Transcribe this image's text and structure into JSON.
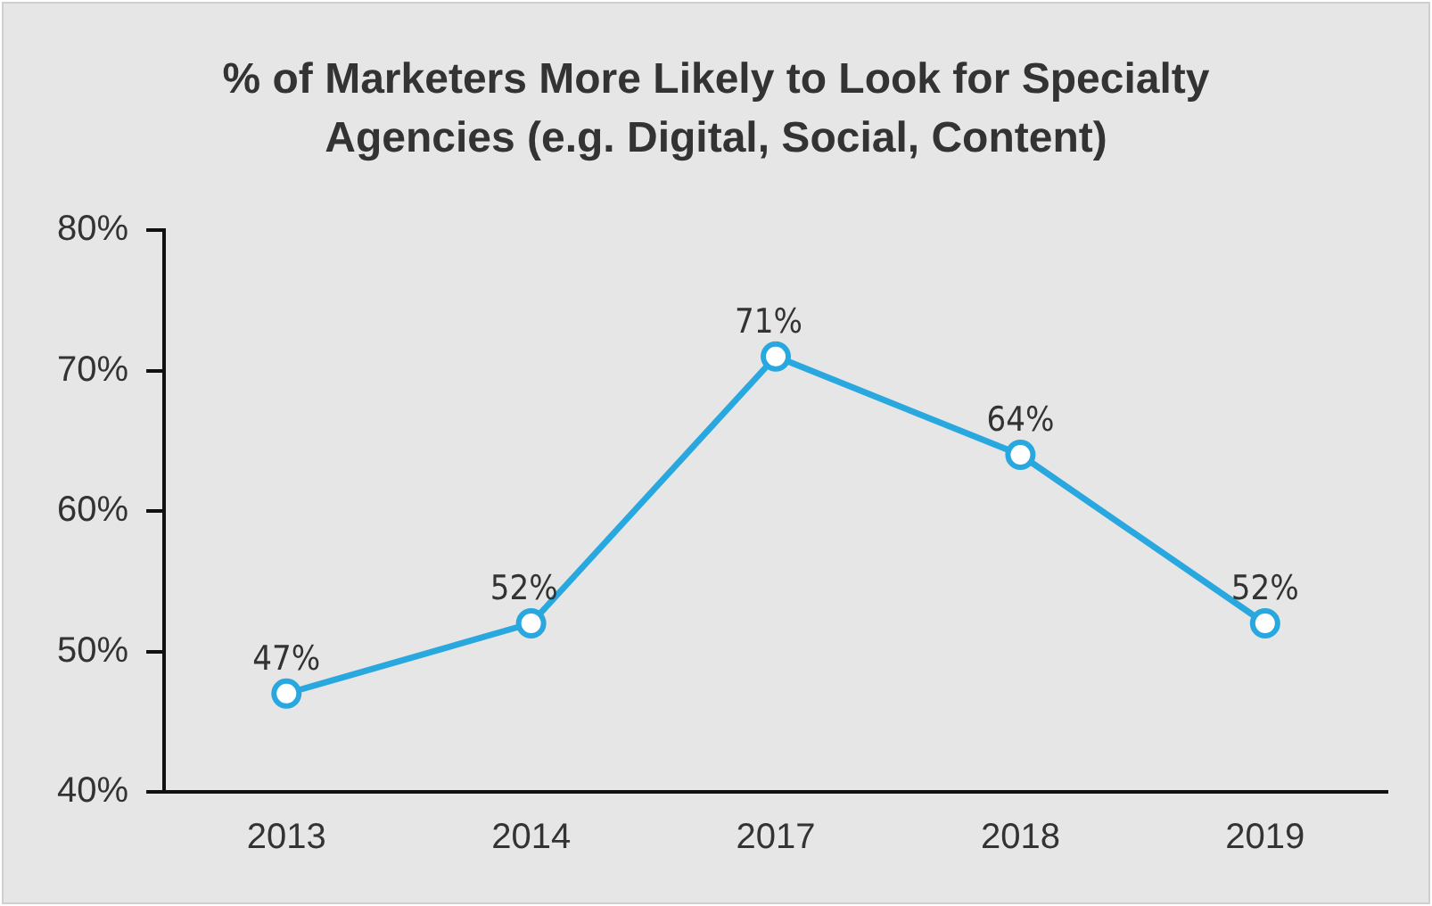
{
  "chart_data": {
    "type": "line",
    "title": "% of Marketers More Likely to Look for Specialty Agencies (e.g. Digital, Social, Content)",
    "categories": [
      "2013",
      "2014",
      "2017",
      "2018",
      "2019"
    ],
    "series": [
      {
        "color": "#29a8e0",
        "values": [
          47,
          52,
          71,
          64,
          52
        ],
        "value_labels": [
          "47%",
          "52%",
          "71%",
          "64%",
          "52%"
        ]
      }
    ],
    "ylim": [
      40,
      80
    ],
    "yticks": [
      {
        "value": 40,
        "label": "40%"
      },
      {
        "value": 50,
        "label": "50%"
      },
      {
        "value": 60,
        "label": "60%"
      },
      {
        "value": 70,
        "label": "70%"
      },
      {
        "value": 80,
        "label": "80%"
      }
    ],
    "grid": false,
    "legend": false,
    "marker": "circle",
    "line_style": "solid"
  }
}
